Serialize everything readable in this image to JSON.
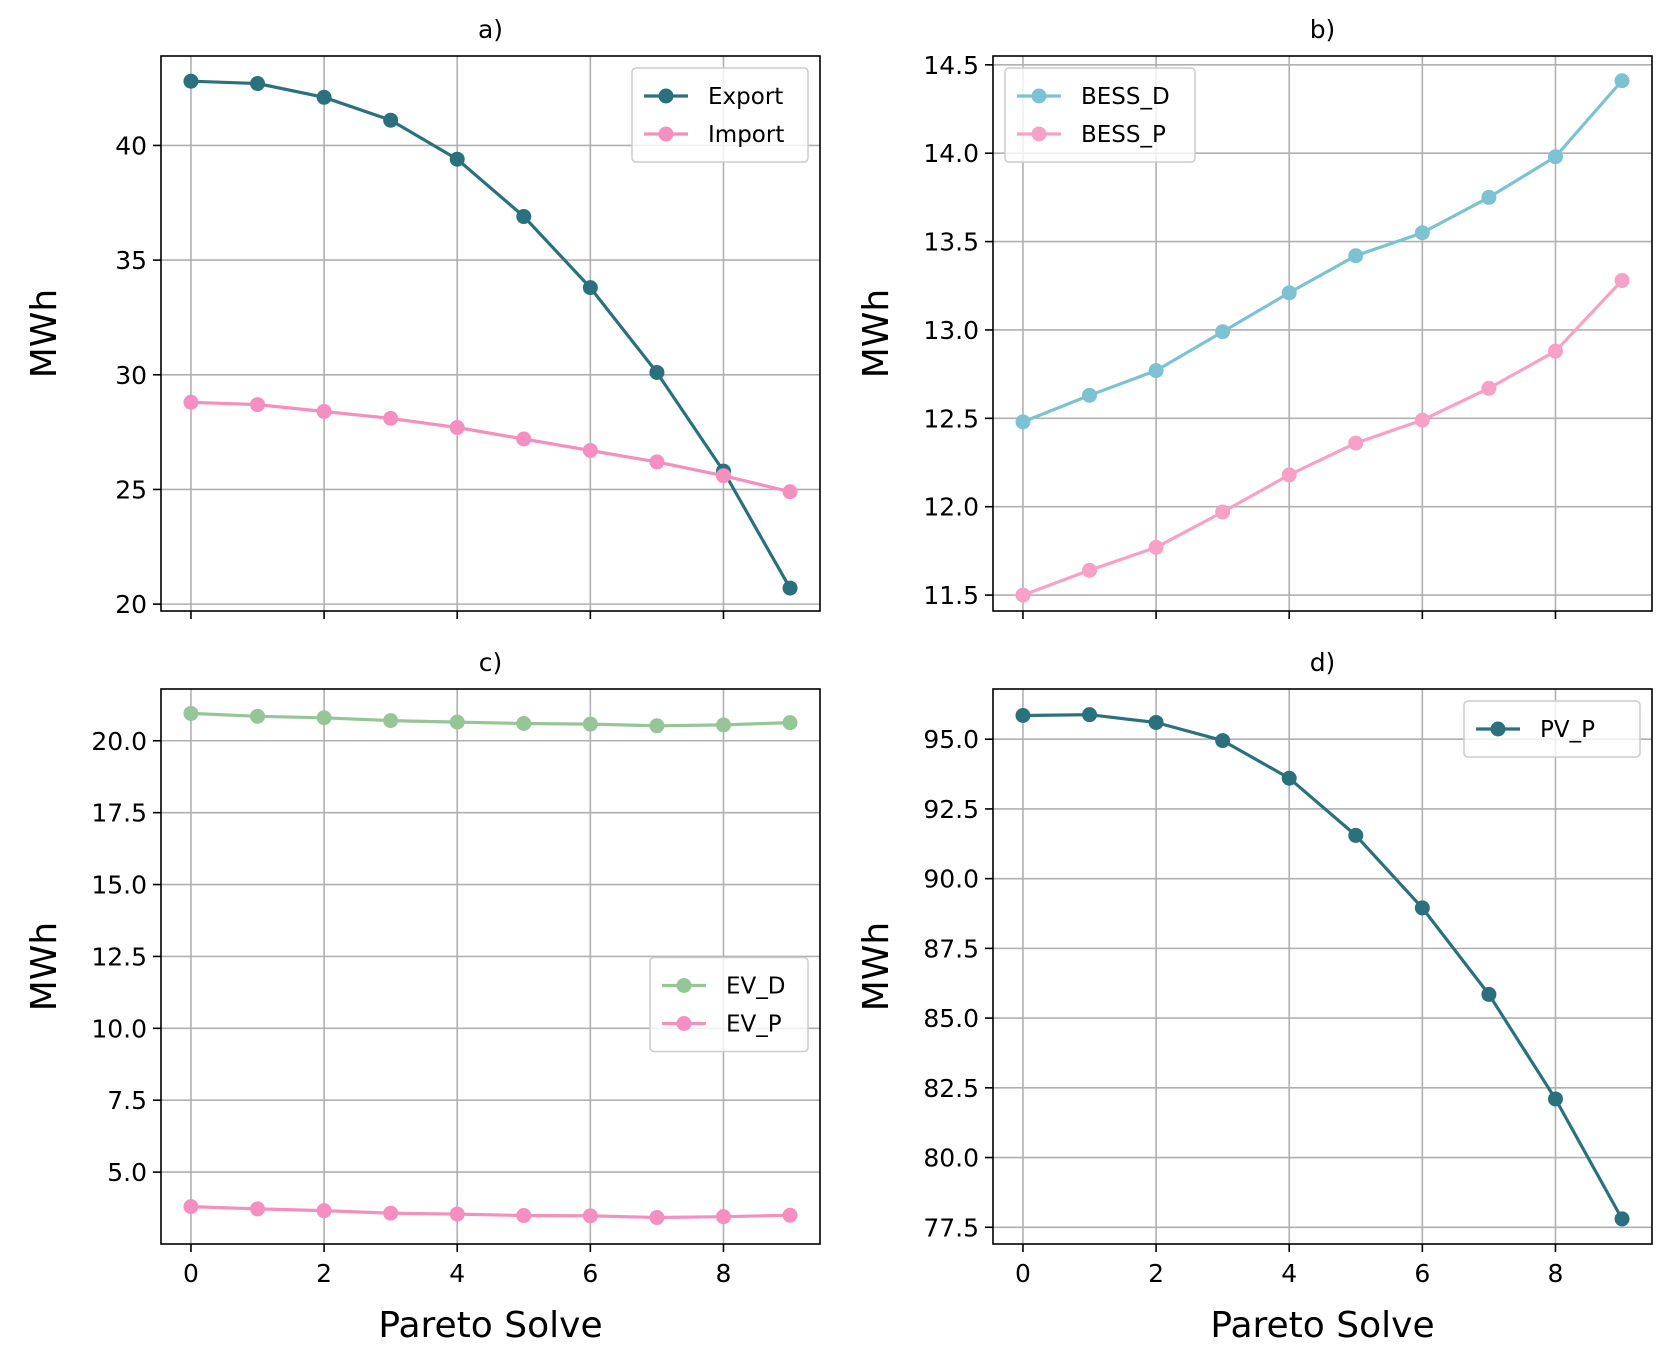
{
  "chart_data": [
    {
      "panel": "a",
      "type": "line",
      "title": "a)",
      "xlabel": "",
      "ylabel": "MWh",
      "x": [
        0,
        1,
        2,
        3,
        4,
        5,
        6,
        7,
        8,
        9
      ],
      "xlim": [
        -0.45,
        9.45
      ],
      "ylim": [
        19.7,
        43.9
      ],
      "xticks": [
        0,
        2,
        4,
        6,
        8
      ],
      "xticklabels": [],
      "yticks": [
        20,
        25,
        30,
        35,
        40
      ],
      "yticklabels": [
        "20",
        "25",
        "30",
        "35",
        "40"
      ],
      "grid": true,
      "legend": "top-right",
      "series": [
        {
          "name": "Export",
          "color": "#2b717d",
          "values": [
            42.8,
            42.7,
            42.1,
            41.1,
            39.4,
            36.9,
            33.8,
            30.1,
            25.8,
            20.7
          ]
        },
        {
          "name": "Import",
          "color": "#f48fc0",
          "values": [
            28.8,
            28.7,
            28.4,
            28.1,
            27.7,
            27.2,
            26.7,
            26.2,
            25.6,
            24.9
          ]
        }
      ]
    },
    {
      "panel": "b",
      "type": "line",
      "title": "b)",
      "xlabel": "",
      "ylabel": "MWh",
      "x": [
        0,
        1,
        2,
        3,
        4,
        5,
        6,
        7,
        8,
        9
      ],
      "xlim": [
        -0.45,
        9.45
      ],
      "ylim": [
        11.41,
        14.55
      ],
      "xticks": [
        0,
        2,
        4,
        6,
        8
      ],
      "xticklabels": [],
      "yticks": [
        11.5,
        12.0,
        12.5,
        13.0,
        13.5,
        14.0,
        14.5
      ],
      "yticklabels": [
        "11.5",
        "12.0",
        "12.5",
        "13.0",
        "13.5",
        "14.0",
        "14.5"
      ],
      "grid": true,
      "legend": "top-left",
      "series": [
        {
          "name": "BESS_D",
          "color": "#7cc2d3",
          "values": [
            12.48,
            12.63,
            12.77,
            12.99,
            13.21,
            13.42,
            13.55,
            13.75,
            13.98,
            14.41
          ]
        },
        {
          "name": "BESS_P",
          "color": "#f7a1c7",
          "values": [
            11.5,
            11.64,
            11.77,
            11.97,
            12.18,
            12.36,
            12.49,
            12.67,
            12.88,
            13.28
          ]
        }
      ]
    },
    {
      "panel": "c",
      "type": "line",
      "title": "c)",
      "xlabel": "Pareto Solve",
      "ylabel": "MWh",
      "x": [
        0,
        1,
        2,
        3,
        4,
        5,
        6,
        7,
        8,
        9
      ],
      "xlim": [
        -0.45,
        9.45
      ],
      "ylim": [
        2.5,
        21.8
      ],
      "xticks": [
        0,
        2,
        4,
        6,
        8
      ],
      "xticklabels": [
        "0",
        "2",
        "4",
        "6",
        "8"
      ],
      "yticks": [
        5.0,
        7.5,
        10.0,
        12.5,
        15.0,
        17.5,
        20.0
      ],
      "yticklabels": [
        "5.0",
        "7.5",
        "10.0",
        "12.5",
        "15.0",
        "17.5",
        "20.0"
      ],
      "grid": true,
      "legend": "center-right",
      "series": [
        {
          "name": "EV_D",
          "color": "#96c597",
          "values": [
            20.95,
            20.85,
            20.8,
            20.7,
            20.65,
            20.6,
            20.58,
            20.52,
            20.55,
            20.63
          ]
        },
        {
          "name": "EV_P",
          "color": "#f48fc0",
          "values": [
            3.8,
            3.72,
            3.66,
            3.57,
            3.54,
            3.49,
            3.48,
            3.42,
            3.45,
            3.5
          ]
        }
      ]
    },
    {
      "panel": "d",
      "type": "line",
      "title": "d)",
      "xlabel": "Pareto Solve",
      "ylabel": "MWh",
      "x": [
        0,
        1,
        2,
        3,
        4,
        5,
        6,
        7,
        8,
        9
      ],
      "xlim": [
        -0.45,
        9.45
      ],
      "ylim": [
        76.9,
        96.8
      ],
      "xticks": [
        0,
        2,
        4,
        6,
        8
      ],
      "xticklabels": [
        "0",
        "2",
        "4",
        "6",
        "8"
      ],
      "yticks": [
        77.5,
        80.0,
        82.5,
        85.0,
        87.5,
        90.0,
        92.5,
        95.0
      ],
      "yticklabels": [
        "77.5",
        "80.0",
        "82.5",
        "85.0",
        "87.5",
        "90.0",
        "92.5",
        "95.0"
      ],
      "grid": true,
      "legend": "top-right",
      "series": [
        {
          "name": "PV_P",
          "color": "#2b717d",
          "values": [
            95.85,
            95.88,
            95.6,
            94.95,
            93.6,
            91.55,
            88.95,
            85.85,
            82.1,
            77.8
          ]
        }
      ]
    }
  ]
}
